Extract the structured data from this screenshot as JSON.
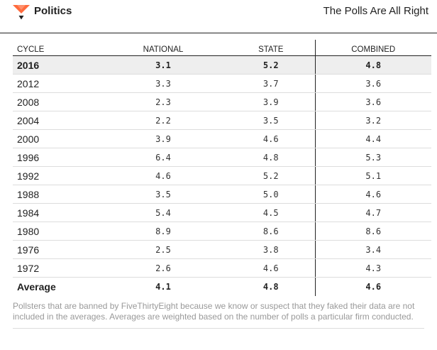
{
  "header": {
    "section_label": "Politics",
    "page_title": "The Polls Are All Right",
    "logo_icon": "fivethirtyeight-fox-icon",
    "accent_color": "#ff6b3d"
  },
  "table": {
    "columns": [
      "CYCLE",
      "NATIONAL",
      "STATE",
      "COMBINED"
    ],
    "rows": [
      {
        "cycle": "2016",
        "national": "3.1",
        "state": "5.2",
        "combined": "4.8"
      },
      {
        "cycle": "2012",
        "national": "3.3",
        "state": "3.7",
        "combined": "3.6"
      },
      {
        "cycle": "2008",
        "national": "2.3",
        "state": "3.9",
        "combined": "3.6"
      },
      {
        "cycle": "2004",
        "national": "2.2",
        "state": "3.5",
        "combined": "3.2"
      },
      {
        "cycle": "2000",
        "national": "3.9",
        "state": "4.6",
        "combined": "4.4"
      },
      {
        "cycle": "1996",
        "national": "6.4",
        "state": "4.8",
        "combined": "5.3"
      },
      {
        "cycle": "1992",
        "national": "4.6",
        "state": "5.2",
        "combined": "5.1"
      },
      {
        "cycle": "1988",
        "national": "3.5",
        "state": "5.0",
        "combined": "4.6"
      },
      {
        "cycle": "1984",
        "national": "5.4",
        "state": "4.5",
        "combined": "4.7"
      },
      {
        "cycle": "1980",
        "national": "8.9",
        "state": "8.6",
        "combined": "8.6"
      },
      {
        "cycle": "1976",
        "national": "2.5",
        "state": "3.8",
        "combined": "3.4"
      },
      {
        "cycle": "1972",
        "national": "2.6",
        "state": "4.6",
        "combined": "4.3"
      }
    ],
    "average": {
      "cycle": "Average",
      "national": "4.1",
      "state": "4.8",
      "combined": "4.6"
    }
  },
  "footnote": "Pollsters that are banned by FiveThirtyEight because we know or suspect that they faked their data are not included in the averages. Averages are weighted based on the number of polls a particular firm conducted."
}
